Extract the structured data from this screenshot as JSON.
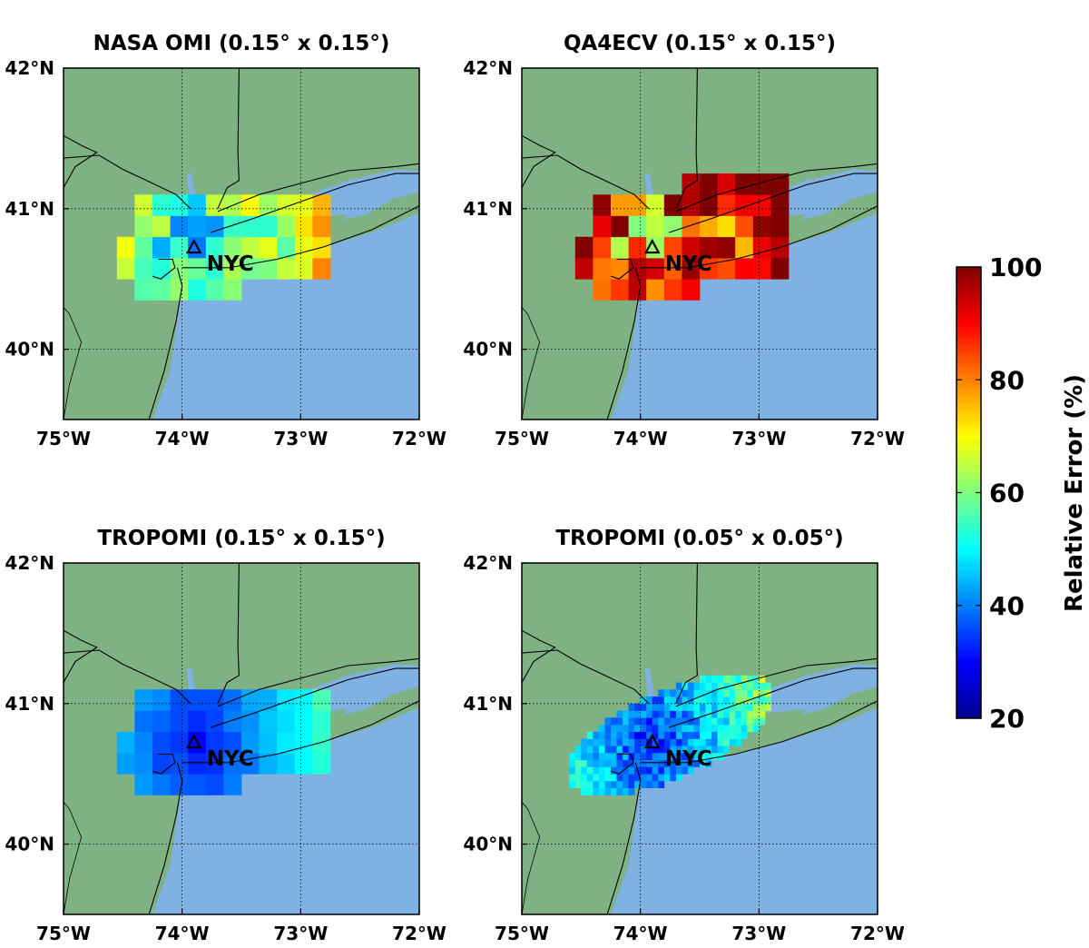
{
  "colors": {
    "land": "#7fb283",
    "ocean": "#80b1e3",
    "border": "#000000"
  },
  "panels": [
    {
      "title": "NASA OMI (0.15° x 0.15°)",
      "city": "NYC",
      "pattern": "omi",
      "yticks": [
        {
          "v": 42,
          "label": "42°N"
        },
        {
          "v": 41,
          "label": "41°N"
        },
        {
          "v": 40,
          "label": "40°N"
        }
      ],
      "xticks": [
        {
          "v": -75,
          "label": "75°W"
        },
        {
          "v": -74,
          "label": "74°W"
        },
        {
          "v": -73,
          "label": "73°W"
        },
        {
          "v": -72,
          "label": "72°W"
        }
      ]
    },
    {
      "title": "QA4ECV (0.15° x 0.15°)",
      "city": "NYC",
      "pattern": "qa4",
      "yticks": [
        {
          "v": 42,
          "label": "42°N"
        },
        {
          "v": 41,
          "label": "41°N"
        },
        {
          "v": 40,
          "label": "40°N"
        }
      ],
      "xticks": [
        {
          "v": -75,
          "label": "75°W"
        },
        {
          "v": -74,
          "label": "74°W"
        },
        {
          "v": -73,
          "label": "73°W"
        },
        {
          "v": -72,
          "label": "72°W"
        }
      ]
    },
    {
      "title": "TROPOMI (0.15° x 0.15°)",
      "city": "NYC",
      "pattern": "tropo15",
      "yticks": [
        {
          "v": 42,
          "label": "42°N"
        },
        {
          "v": 41,
          "label": "41°N"
        },
        {
          "v": 40,
          "label": "40°N"
        }
      ],
      "xticks": [
        {
          "v": -75,
          "label": "75°W"
        },
        {
          "v": -74,
          "label": "74°W"
        },
        {
          "v": -73,
          "label": "73°W"
        },
        {
          "v": -72,
          "label": "72°W"
        }
      ]
    },
    {
      "title": "TROPOMI (0.05° x 0.05°)",
      "city": "NYC",
      "pattern": "tropo05",
      "yticks": [
        {
          "v": 42,
          "label": "42°N"
        },
        {
          "v": 41,
          "label": "41°N"
        },
        {
          "v": 40,
          "label": "40°N"
        }
      ],
      "xticks": [
        {
          "v": -75,
          "label": "75°W"
        },
        {
          "v": -74,
          "label": "74°W"
        },
        {
          "v": -73,
          "label": "73°W"
        },
        {
          "v": -72,
          "label": "72°W"
        }
      ]
    }
  ],
  "map_extent": {
    "lon": [
      -75,
      -72
    ],
    "lat": [
      39.5,
      42
    ]
  },
  "city_location": {
    "lon": -73.9,
    "lat": 40.72
  },
  "colorbar": {
    "label": "Relative Error (%)",
    "min": 20,
    "max": 100,
    "ticks": [
      "100",
      "80",
      "60",
      "40",
      "20"
    ],
    "colormap": "jet"
  }
}
